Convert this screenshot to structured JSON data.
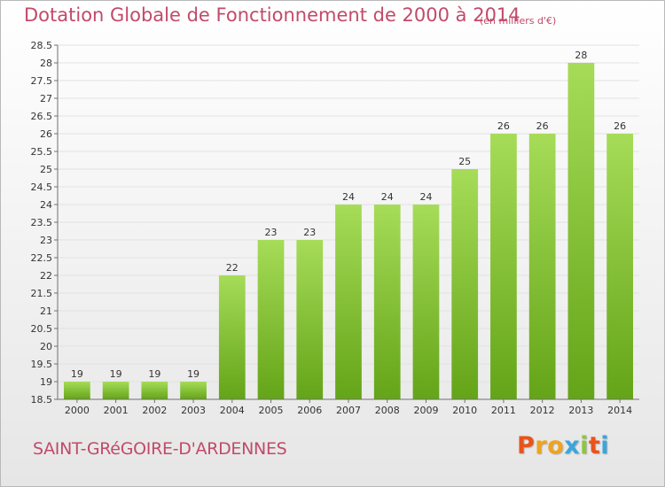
{
  "header": {
    "title": "Dotation Globale de Fonctionnement de 2000 à 2014",
    "unit": "(en milliers d'€)"
  },
  "footer": {
    "commune": "SAINT-GRéGOIRE-D'ARDENNES",
    "logo_letters": [
      "P",
      "r",
      "o",
      "x",
      "i",
      "t",
      "i"
    ],
    "logo_colors": [
      "#e8541a",
      "#f0a31c",
      "#f0a31c",
      "#3aa6dd",
      "#8dc63f",
      "#e8541a",
      "#3aa6dd"
    ]
  },
  "colors": {
    "title": "#c24a6a",
    "bar_light": "#a6dc58",
    "bar_dark": "#64a418",
    "grid": "#e2e2e2",
    "axis": "#707070"
  },
  "chart_data": {
    "type": "bar",
    "categories": [
      "2000",
      "2001",
      "2002",
      "2003",
      "2004",
      "2005",
      "2006",
      "2007",
      "2008",
      "2009",
      "2010",
      "2011",
      "2012",
      "2013",
      "2014"
    ],
    "values": [
      19,
      19,
      19,
      19,
      22,
      23,
      23,
      24,
      24,
      24,
      25,
      26,
      26,
      28,
      26
    ],
    "ylim": [
      18.5,
      28.5
    ],
    "yticks": [
      "18.5",
      "19",
      "19.5",
      "20",
      "20.5",
      "21",
      "21.5",
      "22",
      "22.5",
      "23",
      "23.5",
      "24",
      "24.5",
      "25",
      "25.5",
      "26",
      "26.5",
      "27",
      "27.5",
      "28",
      "28.5"
    ],
    "grid": true,
    "data_labels": true
  }
}
